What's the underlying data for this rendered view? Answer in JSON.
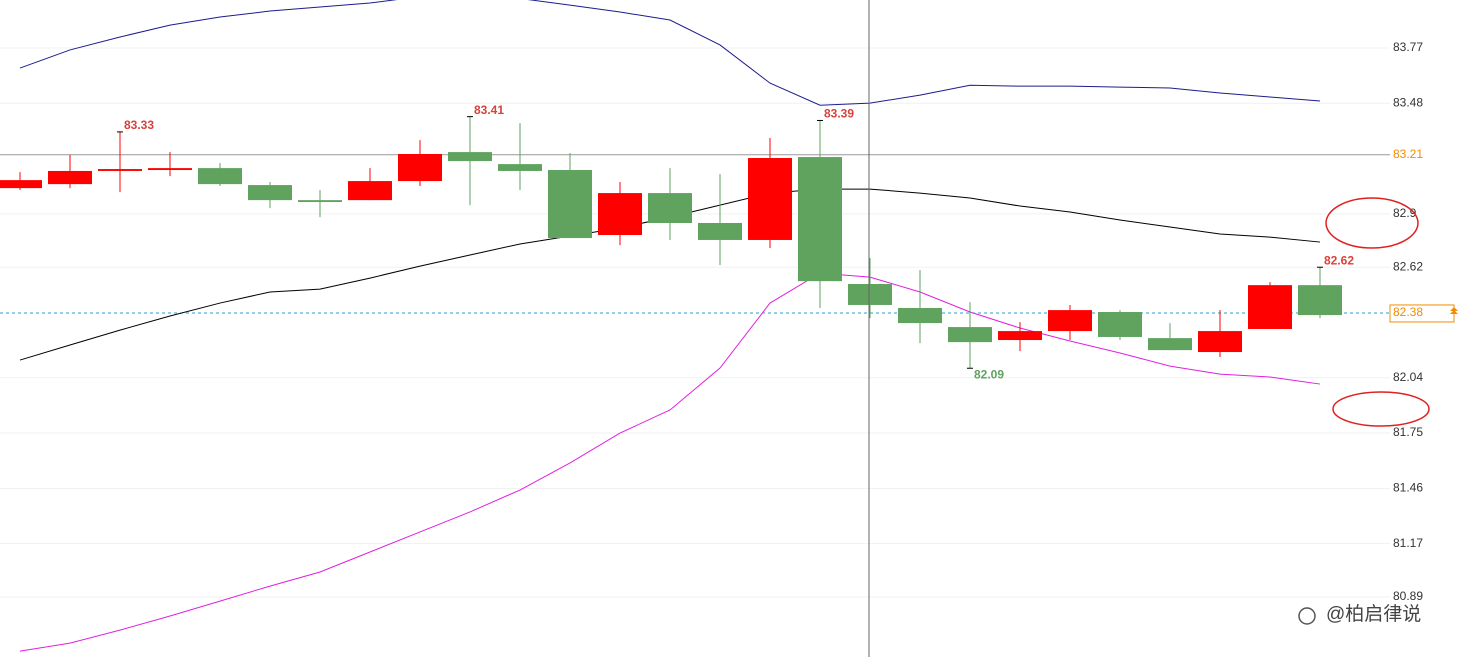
{
  "chart_data": {
    "type": "candlestick",
    "open": [
      83.035,
      83.056,
      83.125,
      83.13,
      83.14,
      83.051,
      82.972,
      82.972,
      83.072,
      83.224,
      83.161,
      83.13,
      82.789,
      83.009,
      82.852,
      82.763,
      83.198,
      82.532,
      82.406,
      82.306,
      82.238,
      82.285,
      82.385,
      82.248,
      82.175,
      82.296,
      82.526
    ],
    "high": [
      83.119,
      83.209,
      83.33,
      83.224,
      83.167,
      83.067,
      83.025,
      83.14,
      83.287,
      83.41,
      83.376,
      83.219,
      83.067,
      83.14,
      83.109,
      83.298,
      83.39,
      82.668,
      82.605,
      82.437,
      82.332,
      82.422,
      82.395,
      82.327,
      82.395,
      82.542,
      82.62
    ],
    "low": [
      83.025,
      83.035,
      83.014,
      83.098,
      83.046,
      82.93,
      82.883,
      82.972,
      83.046,
      82.946,
      83.025,
      82.773,
      82.736,
      82.763,
      82.631,
      82.721,
      82.406,
      82.353,
      82.222,
      82.09,
      82.18,
      82.238,
      82.238,
      82.185,
      82.149,
      82.296,
      82.353
    ],
    "close": [
      83.077,
      83.125,
      83.135,
      83.14,
      83.056,
      82.972,
      82.962,
      83.072,
      83.214,
      83.177,
      83.125,
      82.773,
      83.009,
      82.852,
      82.763,
      83.193,
      82.547,
      82.422,
      82.327,
      82.227,
      82.285,
      82.395,
      82.254,
      82.185,
      82.285,
      82.526,
      82.369
    ],
    "up_color": "#ff0000",
    "down_color": "#5fa35f",
    "high_labels": [
      2,
      9,
      16,
      26
    ],
    "low_labels": [
      19
    ],
    "lines": [
      {
        "color": "#1c1c8c",
        "values": [
          83.665,
          83.76,
          83.828,
          83.89,
          83.933,
          83.964,
          83.985,
          84.006,
          84.04,
          84.05,
          84.03,
          83.995,
          83.959,
          83.917,
          83.786,
          83.586,
          83.47,
          83.481,
          83.523,
          83.575,
          83.57,
          83.57,
          83.565,
          83.56,
          83.534,
          83.513,
          83.492
        ]
      },
      {
        "color": "#000000",
        "values": [
          82.133,
          82.212,
          82.29,
          82.364,
          82.432,
          82.49,
          82.505,
          82.563,
          82.626,
          82.684,
          82.742,
          82.784,
          82.826,
          82.883,
          82.946,
          83.009,
          83.03,
          83.03,
          83.009,
          82.983,
          82.941,
          82.91,
          82.868,
          82.831,
          82.794,
          82.778,
          82.752
        ]
      },
      {
        "color": "#e020e0",
        "values": [
          80.606,
          80.648,
          80.716,
          80.79,
          80.868,
          80.947,
          81.021,
          81.126,
          81.231,
          81.336,
          81.451,
          81.593,
          81.75,
          81.871,
          82.091,
          82.432,
          82.589,
          82.568,
          82.49,
          82.385,
          82.301,
          82.233,
          82.17,
          82.101,
          82.059,
          82.044,
          82.007
        ]
      }
    ],
    "hlines": [
      {
        "value": 83.21,
        "color": "#999999",
        "dashed": false
      },
      {
        "value": 82.38,
        "color": "#2a9fd6",
        "dashed": true
      }
    ],
    "label_color": "#f08c00",
    "ylim": [
      80.575,
      84.022
    ],
    "yticks": [
      83.77,
      83.48,
      82.9,
      82.62,
      82.04,
      81.75,
      81.46,
      81.17,
      80.89
    ],
    "grid": true,
    "watermark": "@柏启律说"
  }
}
